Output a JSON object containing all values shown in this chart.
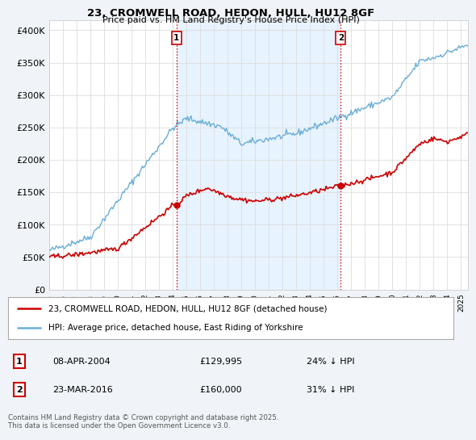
{
  "title_line1": "23, CROMWELL ROAD, HEDON, HULL, HU12 8GF",
  "title_line2": "Price paid vs. HM Land Registry's House Price Index (HPI)",
  "ylabel_ticks": [
    "£0",
    "£50K",
    "£100K",
    "£150K",
    "£200K",
    "£250K",
    "£300K",
    "£350K",
    "£400K"
  ],
  "ytick_values": [
    0,
    50000,
    100000,
    150000,
    200000,
    250000,
    300000,
    350000,
    400000
  ],
  "ylim": [
    0,
    415000
  ],
  "xlim_start": 1995.0,
  "xlim_end": 2025.5,
  "hpi_color": "#6aaed6",
  "price_color": "#cc0000",
  "vline_color": "#cc0000",
  "shade_color": "#ddeeff",
  "background_color": "#f0f4f8",
  "plot_bg_color": "#ffffff",
  "legend_line1": "23, CROMWELL ROAD, HEDON, HULL, HU12 8GF (detached house)",
  "legend_line2": "HPI: Average price, detached house, East Riding of Yorkshire",
  "transaction1_label": "1",
  "transaction1_date": "08-APR-2004",
  "transaction1_price": "£129,995",
  "transaction1_hpi": "24% ↓ HPI",
  "transaction1_year": 2004.27,
  "transaction1_price_val": 129995,
  "transaction2_label": "2",
  "transaction2_date": "23-MAR-2016",
  "transaction2_price": "£160,000",
  "transaction2_hpi": "31% ↓ HPI",
  "transaction2_year": 2016.23,
  "transaction2_price_val": 160000,
  "footer": "Contains HM Land Registry data © Crown copyright and database right 2025.\nThis data is licensed under the Open Government Licence v3.0.",
  "xtick_years": [
    1995,
    1996,
    1997,
    1998,
    1999,
    2000,
    2001,
    2002,
    2003,
    2004,
    2005,
    2006,
    2007,
    2008,
    2009,
    2010,
    2011,
    2012,
    2013,
    2014,
    2015,
    2016,
    2017,
    2018,
    2019,
    2020,
    2021,
    2022,
    2023,
    2024,
    2025
  ]
}
